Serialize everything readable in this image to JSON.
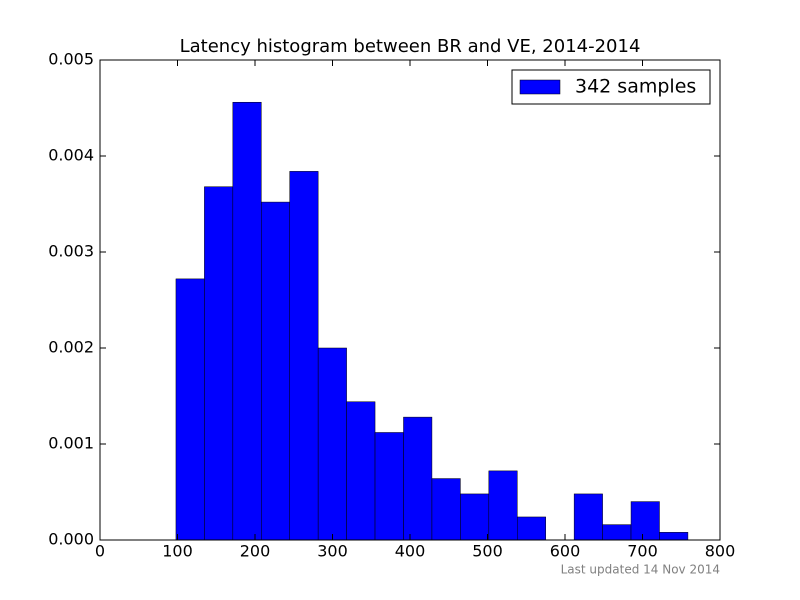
{
  "chart_data": {
    "type": "histogram",
    "title": "Latency histogram between BR and VE, 2014-2014",
    "bins": [
      98,
      134.7,
      171.4,
      208.1,
      244.8,
      281.5,
      318.2,
      354.9,
      391.6,
      428.3,
      465,
      501.7,
      538.4,
      575.1,
      611.8,
      648.5,
      685.2,
      721.9,
      758.6
    ],
    "series": [
      {
        "name": "342 samples",
        "color": "#0000ff",
        "values": [
          0.00272,
          0.00368,
          0.00456,
          0.00352,
          0.00384,
          0.002,
          0.00144,
          0.00112,
          0.00128,
          0.00064,
          0.00048,
          0.00072,
          0.00024,
          0,
          0.00048,
          0.00016,
          0.0004,
          8e-05
        ]
      }
    ],
    "xlim": [
      0,
      800
    ],
    "xticks": [
      0,
      100,
      200,
      300,
      400,
      500,
      600,
      700,
      800
    ],
    "ylim": [
      0,
      0.005
    ],
    "yticks": [
      {
        "value": 0,
        "label": "0.000"
      },
      {
        "value": 0.001,
        "label": "0.001"
      },
      {
        "value": 0.002,
        "label": "0.002"
      },
      {
        "value": 0.003,
        "label": "0.003"
      },
      {
        "value": 0.004,
        "label": "0.004"
      },
      {
        "value": 0.005,
        "label": "0.005"
      }
    ],
    "grid": false,
    "legend": "upper right",
    "footnote": "Last updated 14 Nov 2014"
  }
}
